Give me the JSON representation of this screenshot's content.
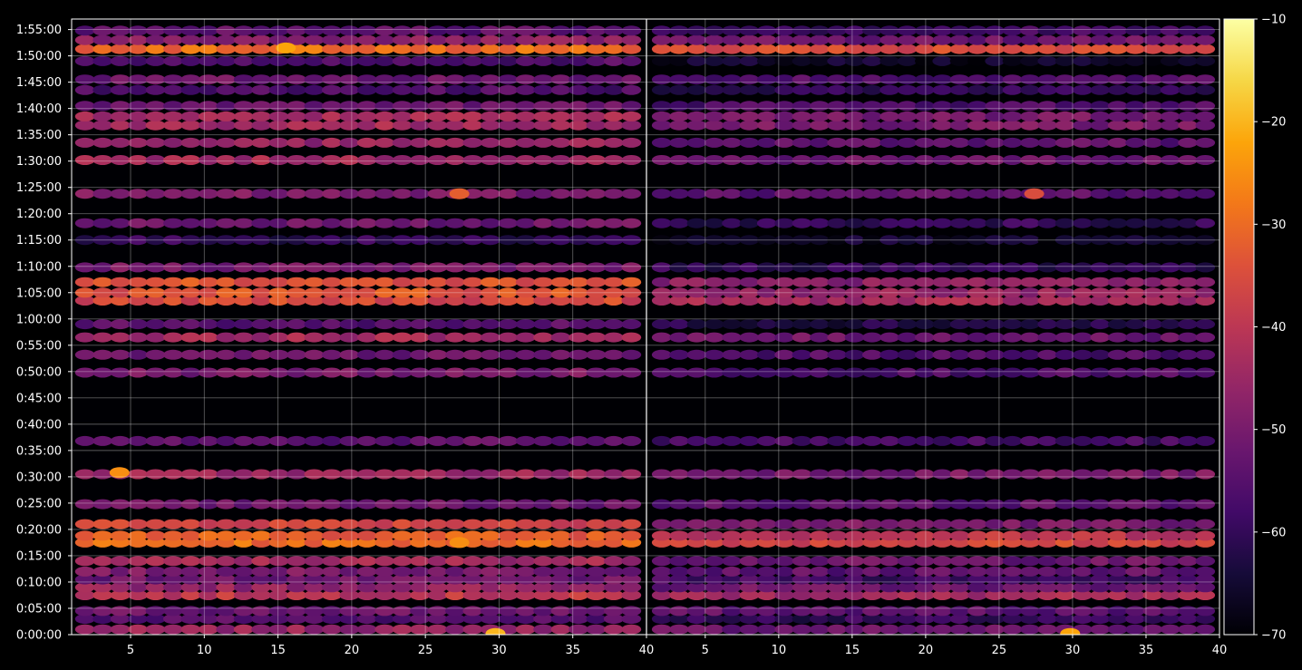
{
  "chart_data": {
    "type": "heatmap",
    "title": "",
    "xlabel": "",
    "ylabel": "",
    "grid": true,
    "panels": [
      {
        "name": "",
        "xlim": [
          1,
          40
        ],
        "xticks": [
          5,
          10,
          15,
          20,
          25,
          30,
          35,
          40
        ]
      },
      {
        "name": "",
        "xlim": [
          1,
          40
        ],
        "xticks": [
          5,
          10,
          15,
          20,
          25,
          30,
          35,
          40
        ]
      }
    ],
    "y_ticks": [
      "0:00:00",
      "0:05:00",
      "0:10:00",
      "0:15:00",
      "0:20:00",
      "0:25:00",
      "0:30:00",
      "0:35:00",
      "0:40:00",
      "0:45:00",
      "0:50:00",
      "0:55:00",
      "1:00:00",
      "1:05:00",
      "1:10:00",
      "1:15:00",
      "1:20:00",
      "1:25:00",
      "1:30:00",
      "1:35:00",
      "1:40:00",
      "1:45:00",
      "1:50:00",
      "1:55:00"
    ],
    "y_range_minutes": [
      0,
      117
    ],
    "colorbar": {
      "colormap": "inferno",
      "min": -70,
      "max": -10,
      "ticks": [
        -70,
        -60,
        -50,
        -40,
        -30,
        -20,
        -10
      ]
    },
    "bands": [
      {
        "minute": 1.0,
        "left": -46,
        "right": -52
      },
      {
        "minute": 3.0,
        "left": -55,
        "right": -60
      },
      {
        "minute": 4.5,
        "left": -52,
        "right": -54
      },
      {
        "minute": 7.5,
        "left": -40,
        "right": -44
      },
      {
        "minute": 9.0,
        "left": -46,
        "right": -52
      },
      {
        "minute": 10.5,
        "left": -52,
        "right": -58
      },
      {
        "minute": 12.0,
        "left": -50,
        "right": -54
      },
      {
        "minute": 14.0,
        "left": -44,
        "right": -52
      },
      {
        "minute": 17.5,
        "left": -30,
        "right": -36
      },
      {
        "minute": 18.8,
        "left": -32,
        "right": -40
      },
      {
        "minute": 21.0,
        "left": -36,
        "right": -50
      },
      {
        "minute": 24.8,
        "left": -52,
        "right": -54
      },
      {
        "minute": 30.5,
        "left": -45,
        "right": -50
      },
      {
        "minute": 36.8,
        "left": -54,
        "right": -58
      },
      {
        "minute": 49.8,
        "left": -50,
        "right": -56
      },
      {
        "minute": 53.2,
        "left": -52,
        "right": -56
      },
      {
        "minute": 56.5,
        "left": -44,
        "right": -52
      },
      {
        "minute": 59.0,
        "left": -55,
        "right": -62
      },
      {
        "minute": 63.5,
        "left": -36,
        "right": -44
      },
      {
        "minute": 65.0,
        "left": -34,
        "right": -46
      },
      {
        "minute": 67.0,
        "left": -34,
        "right": -48
      },
      {
        "minute": 69.8,
        "left": -50,
        "right": -60
      },
      {
        "minute": 75.0,
        "left": -60,
        "right": -66
      },
      {
        "minute": 78.2,
        "left": -52,
        "right": -60
      },
      {
        "minute": 83.8,
        "left": -50,
        "right": -54
      },
      {
        "minute": 90.2,
        "left": -44,
        "right": -52
      },
      {
        "minute": 93.5,
        "left": -46,
        "right": -54
      },
      {
        "minute": 96.8,
        "left": -44,
        "right": -50
      },
      {
        "minute": 98.5,
        "left": -44,
        "right": -50
      },
      {
        "minute": 100.5,
        "left": -52,
        "right": -56
      },
      {
        "minute": 103.5,
        "left": -56,
        "right": -60
      },
      {
        "minute": 105.5,
        "left": -52,
        "right": -56
      },
      {
        "minute": 109.0,
        "left": -56,
        "right": -66
      },
      {
        "minute": 111.3,
        "left": -30,
        "right": -36
      },
      {
        "minute": 113.0,
        "left": -48,
        "right": -52
      },
      {
        "minute": 114.8,
        "left": -54,
        "right": -58
      }
    ],
    "hot_spots": [
      {
        "panel": 0,
        "x": 15.5,
        "minute": 111.5,
        "value": -22
      },
      {
        "panel": 0,
        "x": 4,
        "minute": 30.8,
        "value": -25
      },
      {
        "panel": 0,
        "x": 27.5,
        "minute": 83.8,
        "value": -32
      },
      {
        "panel": 0,
        "x": 27.5,
        "minute": 17.5,
        "value": -25
      },
      {
        "panel": 0,
        "x": 30,
        "minute": 0.2,
        "value": -20
      },
      {
        "panel": 1,
        "x": 30,
        "minute": 0.2,
        "value": -22
      },
      {
        "panel": 1,
        "x": 27.5,
        "minute": 83.8,
        "value": -35
      }
    ]
  }
}
